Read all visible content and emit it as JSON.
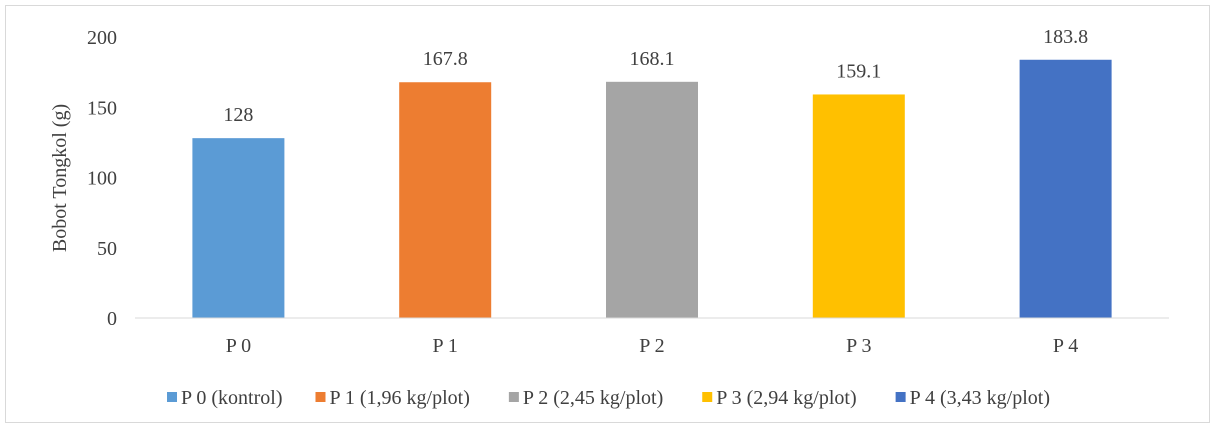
{
  "chart_data": {
    "type": "bar",
    "categories": [
      "P 0",
      "P 1",
      "P 2",
      "P 3",
      "P 4"
    ],
    "values": [
      128,
      167.8,
      168.1,
      159.1,
      183.8
    ],
    "value_labels": [
      "128",
      "167.8",
      "168.1",
      "159.1",
      "183.8"
    ],
    "colors": [
      "#5b9bd5",
      "#ed7d31",
      "#a5a5a5",
      "#ffc000",
      "#4472c4"
    ],
    "legend": [
      "P 0 (kontrol)",
      "P 1 (1,96 kg/plot)",
      "P 2 (2,45 kg/plot)",
      "P 3 (2,94 kg/plot)",
      "P 4 (3,43 kg/plot)"
    ],
    "legend_position": "bottom",
    "ylabel": "Bobot Tongkol (g)",
    "xlabel": "",
    "ylim": [
      0,
      200
    ],
    "yticks": [
      0,
      50,
      100,
      150,
      200
    ],
    "grid": false
  }
}
